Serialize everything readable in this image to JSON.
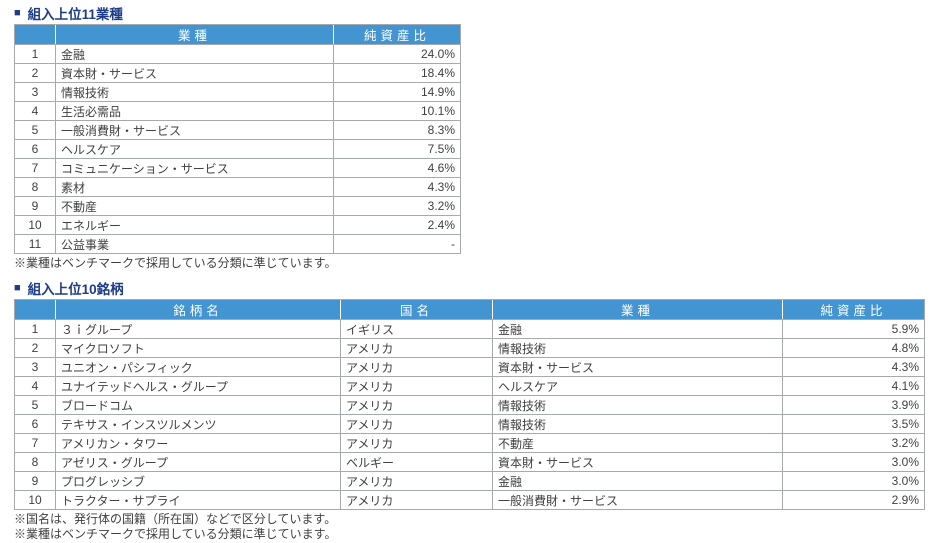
{
  "colors": {
    "header_bg": "#4295d0",
    "header_text": "#ffffff",
    "title_text": "#1c3c87",
    "table_border": "#a6a9b0",
    "body_text": "#404040"
  },
  "sections": {
    "industries": {
      "bullet": "■",
      "title": "組入上位11業種",
      "headers": {
        "rank": "",
        "industry": "業種",
        "ratio": "純資産比"
      },
      "rows": [
        {
          "rank": "1",
          "industry": "金融",
          "ratio": "24.0%"
        },
        {
          "rank": "2",
          "industry": "資本財・サービス",
          "ratio": "18.4%"
        },
        {
          "rank": "3",
          "industry": "情報技術",
          "ratio": "14.9%"
        },
        {
          "rank": "4",
          "industry": "生活必需品",
          "ratio": "10.1%"
        },
        {
          "rank": "5",
          "industry": "一般消費財・サービス",
          "ratio": "8.3%"
        },
        {
          "rank": "6",
          "industry": "ヘルスケア",
          "ratio": "7.5%"
        },
        {
          "rank": "7",
          "industry": "コミュニケーション・サービス",
          "ratio": "4.6%"
        },
        {
          "rank": "8",
          "industry": "素材",
          "ratio": "4.3%"
        },
        {
          "rank": "9",
          "industry": "不動産",
          "ratio": "3.2%"
        },
        {
          "rank": "10",
          "industry": "エネルギー",
          "ratio": "2.4%"
        },
        {
          "rank": "11",
          "industry": "公益事業",
          "ratio": "-"
        }
      ],
      "footnote": "※業種はベンチマークで採用している分類に準じています。"
    },
    "holdings": {
      "bullet": "■",
      "title": "組入上位10銘柄",
      "headers": {
        "rank": "",
        "name": "銘柄名",
        "country": "国名",
        "industry": "業種",
        "ratio": "純資産比"
      },
      "rows": [
        {
          "rank": "1",
          "name": "３ｉグループ",
          "country": "イギリス",
          "industry": "金融",
          "ratio": "5.9%"
        },
        {
          "rank": "2",
          "name": "マイクロソフト",
          "country": "アメリカ",
          "industry": "情報技術",
          "ratio": "4.8%"
        },
        {
          "rank": "3",
          "name": "ユニオン・パシフィック",
          "country": "アメリカ",
          "industry": "資本財・サービス",
          "ratio": "4.3%"
        },
        {
          "rank": "4",
          "name": "ユナイテッドヘルス・グループ",
          "country": "アメリカ",
          "industry": "ヘルスケア",
          "ratio": "4.1%"
        },
        {
          "rank": "5",
          "name": "ブロードコム",
          "country": "アメリカ",
          "industry": "情報技術",
          "ratio": "3.9%"
        },
        {
          "rank": "6",
          "name": "テキサス・インスツルメンツ",
          "country": "アメリカ",
          "industry": "情報技術",
          "ratio": "3.5%"
        },
        {
          "rank": "7",
          "name": "アメリカン・タワー",
          "country": "アメリカ",
          "industry": "不動産",
          "ratio": "3.2%"
        },
        {
          "rank": "8",
          "name": "アゼリス・グループ",
          "country": "ベルギー",
          "industry": "資本財・サービス",
          "ratio": "3.0%"
        },
        {
          "rank": "9",
          "name": "プログレッシブ",
          "country": "アメリカ",
          "industry": "金融",
          "ratio": "3.0%"
        },
        {
          "rank": "10",
          "name": "トラクター・サプライ",
          "country": "アメリカ",
          "industry": "一般消費財・サービス",
          "ratio": "2.9%"
        }
      ],
      "footnotes": {
        "country": "※国名は、発行体の国籍（所在国）などで区分しています。",
        "industry": "※業種はベンチマークで採用している分類に準じています。"
      }
    }
  }
}
